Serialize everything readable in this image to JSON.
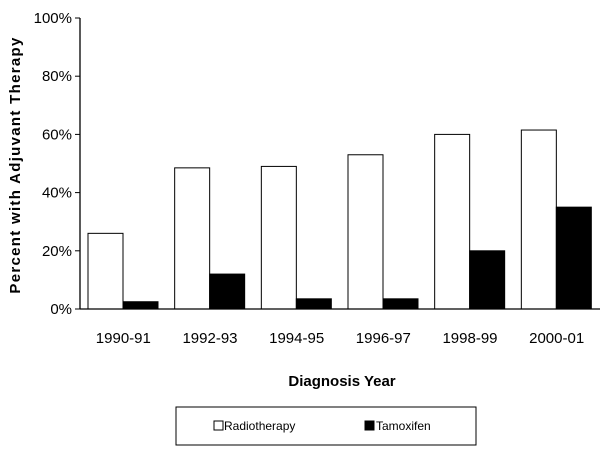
{
  "chart_data": {
    "type": "bar",
    "categories": [
      "1990-91",
      "1992-93",
      "1994-95",
      "1996-97",
      "1998-99",
      "2000-01"
    ],
    "series": [
      {
        "name": "Radiotherapy",
        "values": [
          26,
          48.5,
          49,
          53,
          60,
          61.5
        ],
        "color": "#ffffff"
      },
      {
        "name": "Tamoxifen",
        "values": [
          2.5,
          12,
          3.5,
          3.5,
          20,
          35
        ],
        "color": "#000000"
      }
    ],
    "xlabel": "Diagnosis Year",
    "ylabel": "Percent with Adjuvant Therapy",
    "ylim": [
      0,
      100
    ],
    "yticks": [
      "0%",
      "20%",
      "40%",
      "60%",
      "80%",
      "100%"
    ],
    "grid": false,
    "legend_position": "bottom"
  }
}
